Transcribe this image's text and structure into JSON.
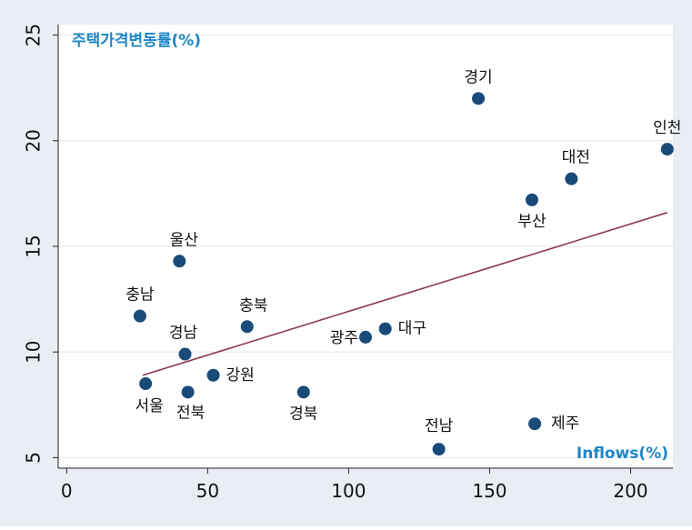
{
  "chart_data": {
    "type": "scatter",
    "title": "",
    "xlabel": "Inflows(%)",
    "ylabel": "주택가격변동률(%)",
    "xlim": [
      -3,
      215
    ],
    "ylim": [
      4.5,
      25.5
    ],
    "xticks": [
      0,
      50,
      100,
      150,
      200
    ],
    "yticks": [
      5,
      10,
      15,
      20,
      25
    ],
    "grid": true,
    "points": [
      {
        "name": "경기",
        "x": 146,
        "y": 22.0
      },
      {
        "name": "인천",
        "x": 213,
        "y": 19.6
      },
      {
        "name": "대전",
        "x": 179,
        "y": 18.2
      },
      {
        "name": "부산",
        "x": 165,
        "y": 17.2
      },
      {
        "name": "울산",
        "x": 40,
        "y": 14.3
      },
      {
        "name": "충남",
        "x": 26,
        "y": 11.7
      },
      {
        "name": "충북",
        "x": 64,
        "y": 11.2
      },
      {
        "name": "대구",
        "x": 113,
        "y": 11.1
      },
      {
        "name": "광주",
        "x": 106,
        "y": 10.7
      },
      {
        "name": "경남",
        "x": 42,
        "y": 9.9
      },
      {
        "name": "강원",
        "x": 52,
        "y": 8.9
      },
      {
        "name": "서울",
        "x": 28,
        "y": 8.5
      },
      {
        "name": "전북",
        "x": 43,
        "y": 8.1
      },
      {
        "name": "경북",
        "x": 84,
        "y": 8.1
      },
      {
        "name": "제주",
        "x": 166,
        "y": 6.6
      },
      {
        "name": "전남",
        "x": 132,
        "y": 5.4
      }
    ],
    "fit_line": {
      "x": [
        27,
        213
      ],
      "y": [
        8.9,
        16.6
      ]
    },
    "colors": {
      "outer_background": "#e8eef3",
      "plot_background": "#ffffff",
      "grid": "#e9eef2",
      "point": "#1a4a78",
      "fit_line": "#8a3a4a",
      "axis_title": "#1f86c6"
    }
  }
}
